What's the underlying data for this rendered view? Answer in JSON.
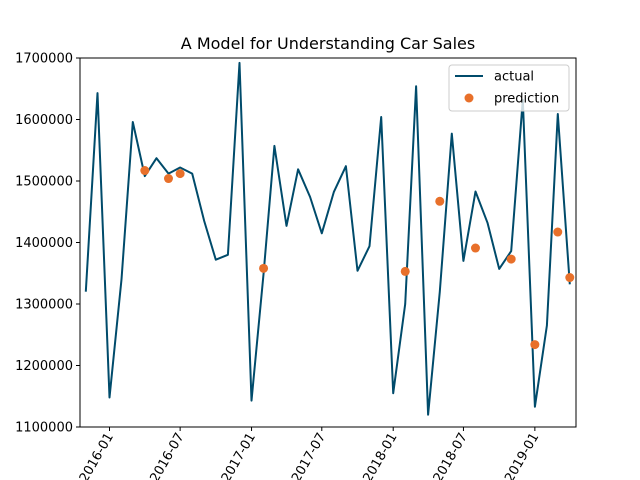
{
  "chart_data": {
    "type": "line",
    "title": "A Model for Understanding Car Sales",
    "xlabel": "",
    "ylabel": "",
    "xlim": [
      "2015-10-17",
      "2019-04-17"
    ],
    "ylim": [
      1100000,
      1700000
    ],
    "grid": false,
    "legend_position": "top-right",
    "x_ticks": [
      "2016-01-01",
      "2016-07-01",
      "2017-01-01",
      "2017-07-01",
      "2018-01-01",
      "2018-07-01",
      "2019-01-01"
    ],
    "x_tick_labels": [
      "2016-01",
      "2016-07",
      "2017-01",
      "2017-07",
      "2018-01",
      "2018-07",
      "2019-01"
    ],
    "y_ticks": [
      1100000,
      1200000,
      1300000,
      1400000,
      1500000,
      1600000,
      1700000
    ],
    "y_tick_labels": [
      "1100000",
      "1200000",
      "1300000",
      "1400000",
      "1500000",
      "1600000",
      "1700000"
    ],
    "series": [
      {
        "name": "actual",
        "style": "line",
        "color": "#004b6b",
        "points": [
          [
            "2015-11-01",
            1320000
          ],
          [
            "2015-12-01",
            1643000
          ],
          [
            "2016-01-01",
            1148000
          ],
          [
            "2016-02-01",
            1340000
          ],
          [
            "2016-03-01",
            1596000
          ],
          [
            "2016-04-01",
            1508000
          ],
          [
            "2016-05-01",
            1537000
          ],
          [
            "2016-06-01",
            1512000
          ],
          [
            "2016-07-01",
            1522000
          ],
          [
            "2016-08-01",
            1512000
          ],
          [
            "2016-09-01",
            1435000
          ],
          [
            "2016-10-01",
            1372000
          ],
          [
            "2016-11-01",
            1380000
          ],
          [
            "2016-12-01",
            1692000
          ],
          [
            "2017-01-01",
            1143000
          ],
          [
            "2017-02-01",
            1350000
          ],
          [
            "2017-03-01",
            1557000
          ],
          [
            "2017-04-01",
            1427000
          ],
          [
            "2017-05-01",
            1519000
          ],
          [
            "2017-06-01",
            1474000
          ],
          [
            "2017-07-01",
            1415000
          ],
          [
            "2017-08-01",
            1482000
          ],
          [
            "2017-09-01",
            1524000
          ],
          [
            "2017-10-01",
            1354000
          ],
          [
            "2017-11-01",
            1394000
          ],
          [
            "2017-12-01",
            1604000
          ],
          [
            "2018-01-01",
            1155000
          ],
          [
            "2018-02-01",
            1300000
          ],
          [
            "2018-03-01",
            1654000
          ],
          [
            "2018-04-01",
            1120000
          ],
          [
            "2018-05-01",
            1320000
          ],
          [
            "2018-06-01",
            1577000
          ],
          [
            "2018-07-01",
            1370000
          ],
          [
            "2018-08-01",
            1483000
          ],
          [
            "2018-09-01",
            1432000
          ],
          [
            "2018-10-01",
            1357000
          ],
          [
            "2018-11-01",
            1386000
          ],
          [
            "2018-12-01",
            1632000
          ],
          [
            "2019-01-01",
            1133000
          ],
          [
            "2019-02-01",
            1265000
          ],
          [
            "2019-03-01",
            1609000
          ],
          [
            "2019-04-01",
            1332000
          ]
        ]
      },
      {
        "name": "prediction",
        "style": "scatter",
        "color": "#e8702a",
        "points": [
          [
            "2016-04-01",
            1517000
          ],
          [
            "2016-06-01",
            1504000
          ],
          [
            "2016-07-01",
            1512000
          ],
          [
            "2017-02-01",
            1358000
          ],
          [
            "2018-02-01",
            1353000
          ],
          [
            "2018-05-01",
            1467000
          ],
          [
            "2018-08-01",
            1391000
          ],
          [
            "2018-11-01",
            1373000
          ],
          [
            "2019-01-01",
            1234000
          ],
          [
            "2019-03-01",
            1417000
          ],
          [
            "2019-04-01",
            1343000
          ]
        ]
      }
    ]
  }
}
